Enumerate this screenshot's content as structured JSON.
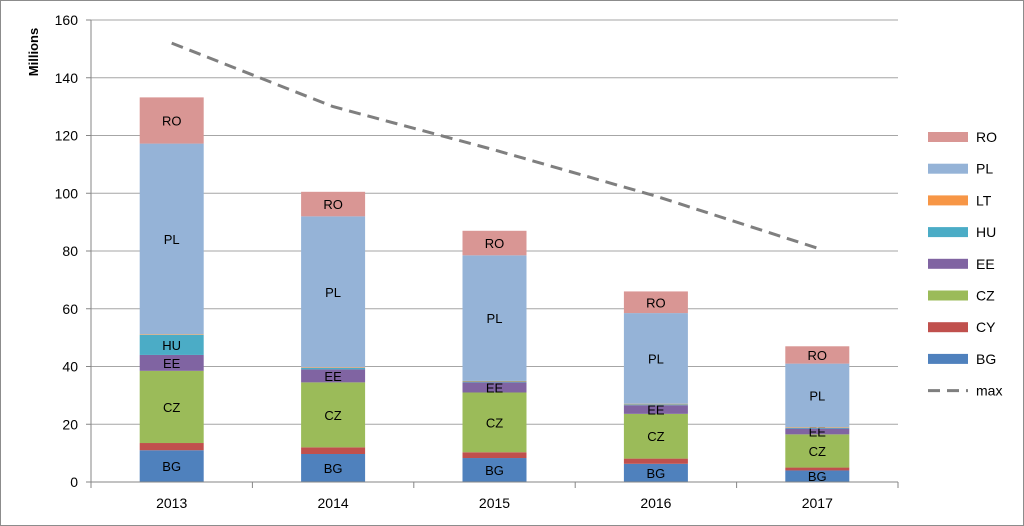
{
  "chart_data": {
    "type": "bar",
    "stacked": true,
    "categories": [
      "2013",
      "2014",
      "2015",
      "2016",
      "2017"
    ],
    "ylabel": "Millions",
    "ylim": [
      0,
      160
    ],
    "yticks": [
      0,
      20,
      40,
      60,
      80,
      100,
      120,
      140,
      160
    ],
    "grid": true,
    "legend_position": "right",
    "series": [
      {
        "name": "BG",
        "color": "#4f81bd",
        "values": [
          11,
          9.7,
          8.3,
          6.3,
          4
        ],
        "labels": [
          "BG",
          "BG",
          "BG",
          "BG",
          "BG"
        ]
      },
      {
        "name": "CY",
        "color": "#c0504d",
        "values": [
          2.5,
          2.3,
          2,
          1.8,
          1
        ],
        "labels": [
          "",
          "",
          "",
          "",
          ""
        ]
      },
      {
        "name": "CZ",
        "color": "#9bbb59",
        "values": [
          25,
          22.5,
          20.7,
          15.5,
          11.5
        ],
        "labels": [
          "CZ",
          "CZ",
          "CZ",
          "CZ",
          "CZ"
        ]
      },
      {
        "name": "EE",
        "color": "#8064a2",
        "values": [
          5.5,
          4.5,
          3.5,
          3,
          2
        ],
        "labels": [
          "EE",
          "EE",
          "EE",
          "EE",
          "EE"
        ]
      },
      {
        "name": "HU",
        "color": "#4bacc6",
        "values": [
          7,
          0.5,
          0.3,
          0.3,
          0.3
        ],
        "labels": [
          "HU",
          "",
          "",
          "",
          ""
        ]
      },
      {
        "name": "LT",
        "color": "#f79646",
        "values": [
          0.2,
          0.2,
          0.2,
          0.2,
          0.2
        ],
        "labels": [
          "",
          "",
          "",
          "",
          ""
        ]
      },
      {
        "name": "PL",
        "color": "#95b3d7",
        "values": [
          66,
          52.3,
          43.5,
          31.4,
          22
        ],
        "labels": [
          "PL",
          "PL",
          "PL",
          "PL",
          "PL"
        ]
      },
      {
        "name": "RO",
        "color": "#d99694",
        "values": [
          16,
          8.5,
          8.5,
          7.5,
          6
        ],
        "labels": [
          "RO",
          "RO",
          "RO",
          "RO",
          "RO"
        ]
      }
    ],
    "line_series": {
      "name": "max",
      "color": "#7f7f7f",
      "dashed": true,
      "values": [
        152,
        130,
        115,
        99,
        81
      ]
    },
    "legend": [
      "RO",
      "PL",
      "LT",
      "HU",
      "EE",
      "CZ",
      "CY",
      "BG",
      "max"
    ]
  }
}
